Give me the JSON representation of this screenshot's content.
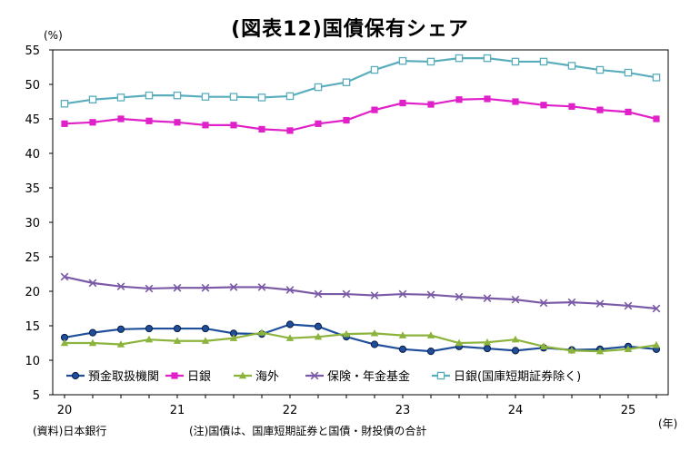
{
  "title": "(図表12)国債保有シェア",
  "unit_label": "(%)",
  "year_label": "(年)",
  "source": "(資料)日本銀行",
  "note": "(注)国債は、国庫短期証券と国債・財投債の合計",
  "colors": {
    "yokin": "#1f4e9a",
    "nichigin": "#e020c8",
    "kaigai": "#8cb43c",
    "hoken": "#7a5aa6",
    "nichigin_tb": "#5aaebc"
  },
  "chart_data": {
    "type": "line",
    "x": [
      20.0,
      20.25,
      20.5,
      20.75,
      21.0,
      21.25,
      21.5,
      21.75,
      22.0,
      22.25,
      22.5,
      22.75,
      23.0,
      23.25,
      23.5,
      23.75,
      24.0,
      24.25,
      24.5,
      24.75,
      25.0,
      25.25
    ],
    "xticks": [
      "20",
      "21",
      "22",
      "23",
      "24",
      "25"
    ],
    "xlim": [
      20.0,
      25.25
    ],
    "ylim": [
      5,
      55
    ],
    "yticks": [
      5,
      10,
      15,
      20,
      25,
      30,
      35,
      40,
      45,
      50,
      55
    ],
    "grid": false,
    "legend_position": "bottom-inside",
    "series": [
      {
        "key": "yokin",
        "name": "預金取扱機関",
        "marker": "circle",
        "values": [
          13.3,
          14.0,
          14.5,
          14.6,
          14.6,
          14.6,
          13.9,
          13.8,
          15.2,
          14.9,
          13.4,
          12.3,
          11.6,
          11.3,
          12.0,
          11.7,
          11.4,
          11.8,
          11.5,
          11.6,
          12.0,
          11.6
        ]
      },
      {
        "key": "nichigin",
        "name": "日銀",
        "marker": "square",
        "values": [
          44.3,
          44.5,
          45.0,
          44.7,
          44.5,
          44.1,
          44.1,
          43.5,
          43.3,
          44.3,
          44.8,
          46.3,
          47.3,
          47.1,
          47.8,
          47.9,
          47.5,
          47.0,
          46.8,
          46.3,
          46.0,
          45.0
        ]
      },
      {
        "key": "kaigai",
        "name": "海外",
        "marker": "triangle",
        "values": [
          12.5,
          12.5,
          12.3,
          13.0,
          12.8,
          12.8,
          13.2,
          14.0,
          13.2,
          13.4,
          13.8,
          13.9,
          13.6,
          13.6,
          12.5,
          12.6,
          13.0,
          12.0,
          11.4,
          11.3,
          11.6,
          12.2
        ]
      },
      {
        "key": "hoken",
        "name": "保険・年金基金",
        "marker": "x",
        "values": [
          22.1,
          21.2,
          20.7,
          20.4,
          20.5,
          20.5,
          20.6,
          20.6,
          20.2,
          19.6,
          19.6,
          19.4,
          19.6,
          19.5,
          19.2,
          19.0,
          18.8,
          18.3,
          18.4,
          18.2,
          17.9,
          17.5
        ]
      },
      {
        "key": "nichigin_tb",
        "name": "日銀(国庫短期証券除く)",
        "marker": "open-square",
        "values": [
          47.2,
          47.8,
          48.1,
          48.4,
          48.4,
          48.2,
          48.2,
          48.1,
          48.3,
          49.6,
          50.3,
          52.1,
          53.4,
          53.3,
          53.8,
          53.8,
          53.3,
          53.3,
          52.7,
          52.1,
          51.7,
          51.0
        ]
      }
    ]
  }
}
